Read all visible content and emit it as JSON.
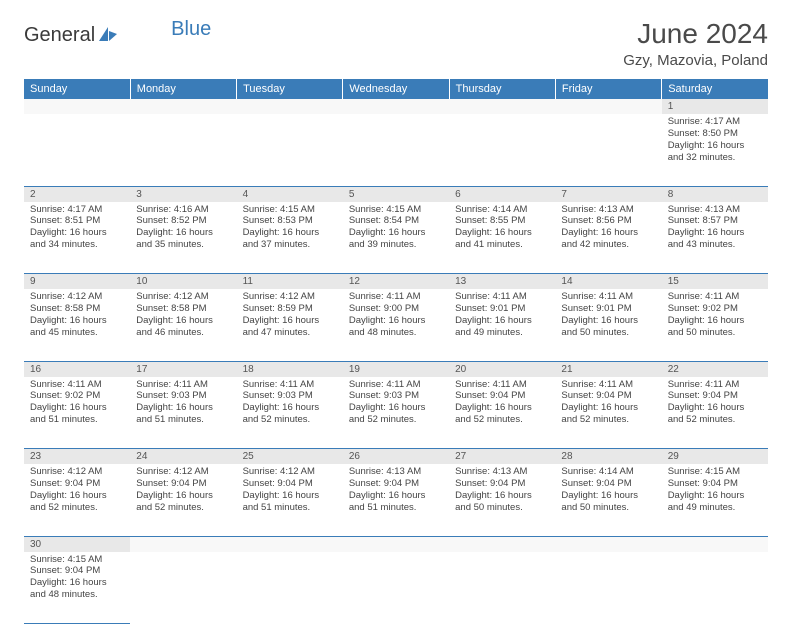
{
  "logo": {
    "general": "General",
    "blue": "Blue"
  },
  "title": "June 2024",
  "location": "Gzy, Mazovia, Poland",
  "colors": {
    "header_bg": "#3a7cb8",
    "header_fg": "#ffffff",
    "daynum_bg": "#e8e8e8",
    "border": "#3a7cb8",
    "text": "#444444"
  },
  "weekdays": [
    "Sunday",
    "Monday",
    "Tuesday",
    "Wednesday",
    "Thursday",
    "Friday",
    "Saturday"
  ],
  "weeks": [
    [
      null,
      null,
      null,
      null,
      null,
      null,
      {
        "n": "1",
        "sr": "4:17 AM",
        "ss": "8:50 PM",
        "dl": "16 hours and 32 minutes."
      }
    ],
    [
      {
        "n": "2",
        "sr": "4:17 AM",
        "ss": "8:51 PM",
        "dl": "16 hours and 34 minutes."
      },
      {
        "n": "3",
        "sr": "4:16 AM",
        "ss": "8:52 PM",
        "dl": "16 hours and 35 minutes."
      },
      {
        "n": "4",
        "sr": "4:15 AM",
        "ss": "8:53 PM",
        "dl": "16 hours and 37 minutes."
      },
      {
        "n": "5",
        "sr": "4:15 AM",
        "ss": "8:54 PM",
        "dl": "16 hours and 39 minutes."
      },
      {
        "n": "6",
        "sr": "4:14 AM",
        "ss": "8:55 PM",
        "dl": "16 hours and 41 minutes."
      },
      {
        "n": "7",
        "sr": "4:13 AM",
        "ss": "8:56 PM",
        "dl": "16 hours and 42 minutes."
      },
      {
        "n": "8",
        "sr": "4:13 AM",
        "ss": "8:57 PM",
        "dl": "16 hours and 43 minutes."
      }
    ],
    [
      {
        "n": "9",
        "sr": "4:12 AM",
        "ss": "8:58 PM",
        "dl": "16 hours and 45 minutes."
      },
      {
        "n": "10",
        "sr": "4:12 AM",
        "ss": "8:58 PM",
        "dl": "16 hours and 46 minutes."
      },
      {
        "n": "11",
        "sr": "4:12 AM",
        "ss": "8:59 PM",
        "dl": "16 hours and 47 minutes."
      },
      {
        "n": "12",
        "sr": "4:11 AM",
        "ss": "9:00 PM",
        "dl": "16 hours and 48 minutes."
      },
      {
        "n": "13",
        "sr": "4:11 AM",
        "ss": "9:01 PM",
        "dl": "16 hours and 49 minutes."
      },
      {
        "n": "14",
        "sr": "4:11 AM",
        "ss": "9:01 PM",
        "dl": "16 hours and 50 minutes."
      },
      {
        "n": "15",
        "sr": "4:11 AM",
        "ss": "9:02 PM",
        "dl": "16 hours and 50 minutes."
      }
    ],
    [
      {
        "n": "16",
        "sr": "4:11 AM",
        "ss": "9:02 PM",
        "dl": "16 hours and 51 minutes."
      },
      {
        "n": "17",
        "sr": "4:11 AM",
        "ss": "9:03 PM",
        "dl": "16 hours and 51 minutes."
      },
      {
        "n": "18",
        "sr": "4:11 AM",
        "ss": "9:03 PM",
        "dl": "16 hours and 52 minutes."
      },
      {
        "n": "19",
        "sr": "4:11 AM",
        "ss": "9:03 PM",
        "dl": "16 hours and 52 minutes."
      },
      {
        "n": "20",
        "sr": "4:11 AM",
        "ss": "9:04 PM",
        "dl": "16 hours and 52 minutes."
      },
      {
        "n": "21",
        "sr": "4:11 AM",
        "ss": "9:04 PM",
        "dl": "16 hours and 52 minutes."
      },
      {
        "n": "22",
        "sr": "4:11 AM",
        "ss": "9:04 PM",
        "dl": "16 hours and 52 minutes."
      }
    ],
    [
      {
        "n": "23",
        "sr": "4:12 AM",
        "ss": "9:04 PM",
        "dl": "16 hours and 52 minutes."
      },
      {
        "n": "24",
        "sr": "4:12 AM",
        "ss": "9:04 PM",
        "dl": "16 hours and 52 minutes."
      },
      {
        "n": "25",
        "sr": "4:12 AM",
        "ss": "9:04 PM",
        "dl": "16 hours and 51 minutes."
      },
      {
        "n": "26",
        "sr": "4:13 AM",
        "ss": "9:04 PM",
        "dl": "16 hours and 51 minutes."
      },
      {
        "n": "27",
        "sr": "4:13 AM",
        "ss": "9:04 PM",
        "dl": "16 hours and 50 minutes."
      },
      {
        "n": "28",
        "sr": "4:14 AM",
        "ss": "9:04 PM",
        "dl": "16 hours and 50 minutes."
      },
      {
        "n": "29",
        "sr": "4:15 AM",
        "ss": "9:04 PM",
        "dl": "16 hours and 49 minutes."
      }
    ],
    [
      {
        "n": "30",
        "sr": "4:15 AM",
        "ss": "9:04 PM",
        "dl": "16 hours and 48 minutes."
      },
      null,
      null,
      null,
      null,
      null,
      null
    ]
  ],
  "labels": {
    "sunrise": "Sunrise:",
    "sunset": "Sunset:",
    "daylight": "Daylight:"
  }
}
